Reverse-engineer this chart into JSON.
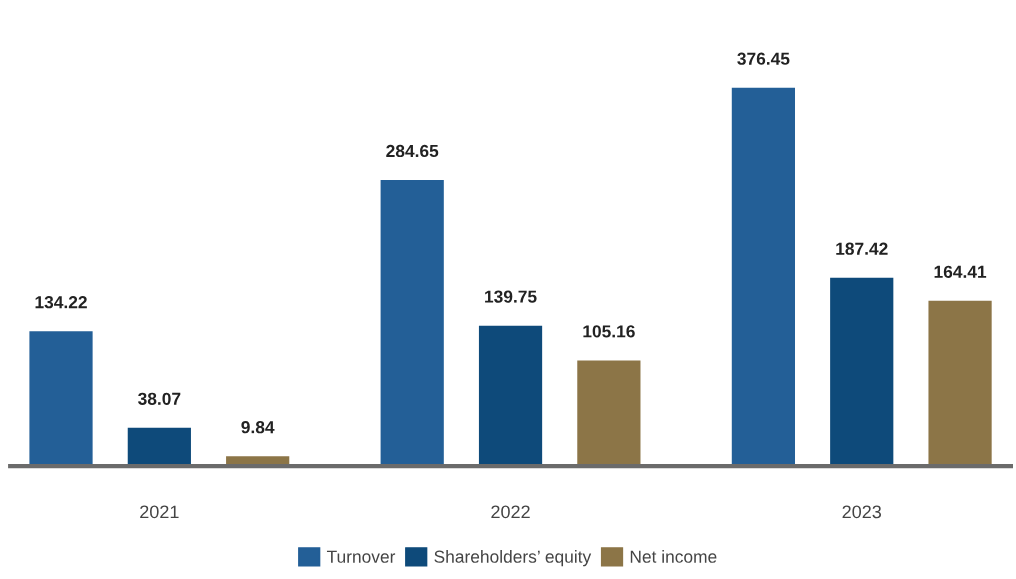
{
  "chart_data": {
    "type": "bar",
    "categories": [
      "2021",
      "2022",
      "2023"
    ],
    "series": [
      {
        "name": "Turnover",
        "color": "#235f97",
        "values": [
          134.22,
          284.65,
          376.45
        ]
      },
      {
        "name": "Shareholders’ equity",
        "color": "#0e4a7a",
        "values": [
          38.07,
          139.75,
          187.42
        ]
      },
      {
        "name": "Net income",
        "color": "#8c7547",
        "values": [
          9.84,
          105.16,
          164.41
        ]
      }
    ],
    "data_labels": true,
    "legend": "bottom",
    "grid": false
  }
}
